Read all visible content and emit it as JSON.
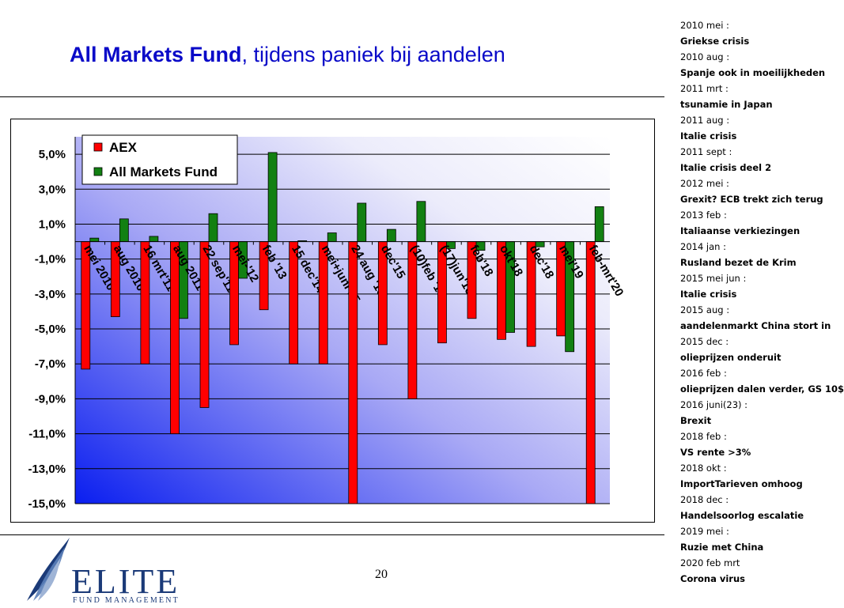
{
  "title": {
    "bold": "All Markets Fund",
    "rest": ", tijdens paniek bij aandelen"
  },
  "page_number": "20",
  "logo": {
    "text": "ELITE",
    "sub": "FUND MANAGEMENT"
  },
  "timeline": [
    {
      "date": "2010 mei :",
      "desc": "Griekse crisis"
    },
    {
      "date": "2010 aug :",
      "desc": "Spanje ook in moeilijkheden"
    },
    {
      "date": "2011 mrt :",
      "desc": "tsunamie in Japan"
    },
    {
      "date": "2011 aug :",
      "desc": "Italie crisis"
    },
    {
      "date": "2011 sept :",
      "desc": "Italie crisis deel 2"
    },
    {
      "date": "2012 mei :",
      "desc": "Grexit? ECB trekt zich terug"
    },
    {
      "date": "2013 feb :",
      "desc": "Italiaanse verkiezingen"
    },
    {
      "date": "2014 jan :",
      "desc": "Rusland bezet de Krim"
    },
    {
      "date": "2015 mei jun :",
      "desc": "Italie crisis"
    },
    {
      "date": "2015 aug :",
      "desc": "aandelenmarkt China stort in"
    },
    {
      "date": "2015 dec :",
      "desc": "olieprijzen onderuit"
    },
    {
      "date": "2016 feb :",
      "desc": "olieprijzen dalen verder, GS 10$"
    },
    {
      "date": "2016 juni(23) :",
      "desc": "Brexit"
    },
    {
      "date": "2018 feb :",
      "desc": "VS rente >3%"
    },
    {
      "date": "2018 okt :",
      "desc": "ImportTarieven omhoog"
    },
    {
      "date": "2018 dec :",
      "desc": "Handelsoorlog escalatie"
    },
    {
      "date": "2019 mei :",
      "desc": "Ruzie met China"
    },
    {
      "date": "2020 feb mrt",
      "desc": "Corona virus"
    }
  ],
  "chart_data": {
    "type": "bar",
    "categories": [
      "mei 2010",
      "aug 2010",
      "16 mrt'11",
      "aug 2011",
      "22 sep'11",
      "mei-'12",
      "feb '13",
      "15 dec'14",
      "mei+juni 15",
      "24 aug '15",
      "dec'15",
      "(10)feb '16",
      "(17)jun'16",
      "feb'18",
      "okt'18",
      "dec'18",
      "mei'19",
      "feb-mrt'20"
    ],
    "series": [
      {
        "name": "AEX",
        "color": "#ff0000",
        "values": [
          -7.3,
          -4.3,
          -7.0,
          -11.0,
          -9.5,
          -5.9,
          -3.9,
          -7.0,
          -7.0,
          -15.0,
          -5.9,
          -9.0,
          -5.8,
          -4.4,
          -5.6,
          -6.0,
          -5.4,
          -15.0
        ]
      },
      {
        "name": "All Markets Fund",
        "color": "#128012",
        "values": [
          0.2,
          1.3,
          0.3,
          -4.4,
          1.6,
          -2.1,
          5.1,
          0.05,
          0.5,
          2.2,
          0.7,
          2.3,
          -0.4,
          -0.5,
          -5.2,
          -0.3,
          -6.3,
          2.0
        ]
      }
    ],
    "ylim": [
      -15,
      6
    ],
    "yticks": [
      "5,0%",
      "3,0%",
      "1,0%",
      "-1,0%",
      "-3,0%",
      "-5,0%",
      "-7,0%",
      "-9,0%",
      "-11,0%",
      "-13,0%",
      "-15,0%"
    ],
    "ytick_values": [
      5,
      3,
      1,
      -1,
      -3,
      -5,
      -7,
      -9,
      -11,
      -13,
      -15
    ],
    "legend_position": "top-left",
    "grid": true
  }
}
